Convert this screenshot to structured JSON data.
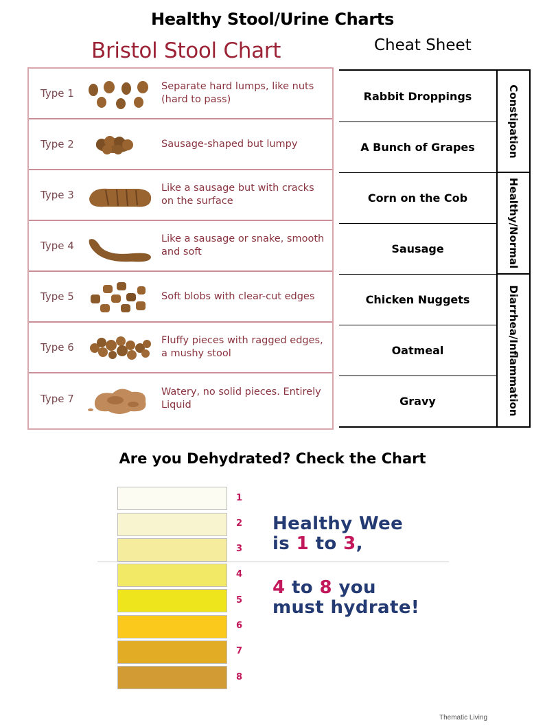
{
  "title": "Healthy Stool/Urine Charts",
  "bristol": {
    "title": "Bristol Stool Chart",
    "rows": [
      {
        "type": "Type 1",
        "description": "Separate hard lumps, like nuts (hard to pass)"
      },
      {
        "type": "Type 2",
        "description": "Sausage-shaped but lumpy"
      },
      {
        "type": "Type 3",
        "description": "Like a sausage but with cracks on the surface"
      },
      {
        "type": "Type 4",
        "description": "Like a sausage or snake, smooth and soft"
      },
      {
        "type": "Type 5",
        "description": "Soft blobs with clear-cut edges"
      },
      {
        "type": "Type 6",
        "description": "Fluffy pieces with ragged edges, a mushy stool"
      },
      {
        "type": "Type 7",
        "description": "Watery, no solid pieces. Entirely Liquid"
      }
    ],
    "colors": {
      "title": "#9b2335",
      "border": "#c98e97",
      "stool": "#8b5a2b"
    }
  },
  "cheat_sheet": {
    "title": "Cheat Sheet",
    "items": [
      "Rabbit Droppings",
      "A Bunch of Grapes",
      "Corn on the Cob",
      "Sausage",
      "Chicken Nuggets",
      "Oatmeal",
      "Gravy"
    ],
    "groups": [
      {
        "label": "Constipation",
        "count": 2
      },
      {
        "label": "Healthy/Normal",
        "count": 2
      },
      {
        "label": "Diarrhea/Inflammation",
        "count": 3
      }
    ]
  },
  "urine": {
    "title": "Are you Dehydrated? Check the Chart",
    "levels": [
      {
        "number": "1",
        "color": "#fdfcf3"
      },
      {
        "number": "2",
        "color": "#f9f4d0"
      },
      {
        "number": "3",
        "color": "#f5ec9e"
      },
      {
        "number": "4",
        "color": "#f2ea66"
      },
      {
        "number": "5",
        "color": "#efe51d"
      },
      {
        "number": "6",
        "color": "#fbc91b"
      },
      {
        "number": "7",
        "color": "#e2ac24"
      },
      {
        "number": "8",
        "color": "#d39b33"
      }
    ],
    "healthy_line1": "Healthy Wee",
    "healthy_line2_pre": "is ",
    "healthy_line2_a": "1",
    "healthy_line2_mid": " to ",
    "healthy_line2_b": "3",
    "healthy_line2_post": ",",
    "hydrate_a": "4",
    "hydrate_mid": " to ",
    "hydrate_b": "8",
    "hydrate_post": " you",
    "hydrate_line2": "must hydrate!",
    "colors": {
      "text": "#243a73",
      "accent": "#c2185b"
    }
  },
  "credit": "Thematic Living"
}
